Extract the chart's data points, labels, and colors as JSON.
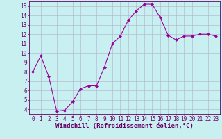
{
  "x": [
    0,
    1,
    2,
    3,
    4,
    5,
    6,
    7,
    8,
    9,
    10,
    11,
    12,
    13,
    14,
    15,
    16,
    17,
    18,
    19,
    20,
    21,
    22,
    23
  ],
  "y": [
    8.0,
    9.7,
    7.5,
    3.8,
    3.9,
    4.8,
    6.2,
    6.5,
    6.5,
    8.5,
    11.0,
    11.8,
    13.5,
    14.5,
    15.2,
    15.2,
    13.8,
    11.9,
    11.4,
    11.8,
    11.8,
    12.0,
    12.0,
    11.8
  ],
  "line_color": "#990099",
  "marker": "D",
  "marker_size": 2,
  "xlabel": "Windchill (Refroidissement éolien,°C)",
  "xlabel_fontsize": 6.5,
  "bg_color": "#c8f0f0",
  "grid_color": "#b0b0cc",
  "xlim": [
    -0.5,
    23.5
  ],
  "ylim": [
    3.5,
    15.5
  ],
  "yticks": [
    4,
    5,
    6,
    7,
    8,
    9,
    10,
    11,
    12,
    13,
    14,
    15
  ],
  "xticks": [
    0,
    1,
    2,
    3,
    4,
    5,
    6,
    7,
    8,
    9,
    10,
    11,
    12,
    13,
    14,
    15,
    16,
    17,
    18,
    19,
    20,
    21,
    22,
    23
  ],
  "tick_fontsize": 5.5,
  "axis_color": "#660066",
  "linewidth": 0.8
}
